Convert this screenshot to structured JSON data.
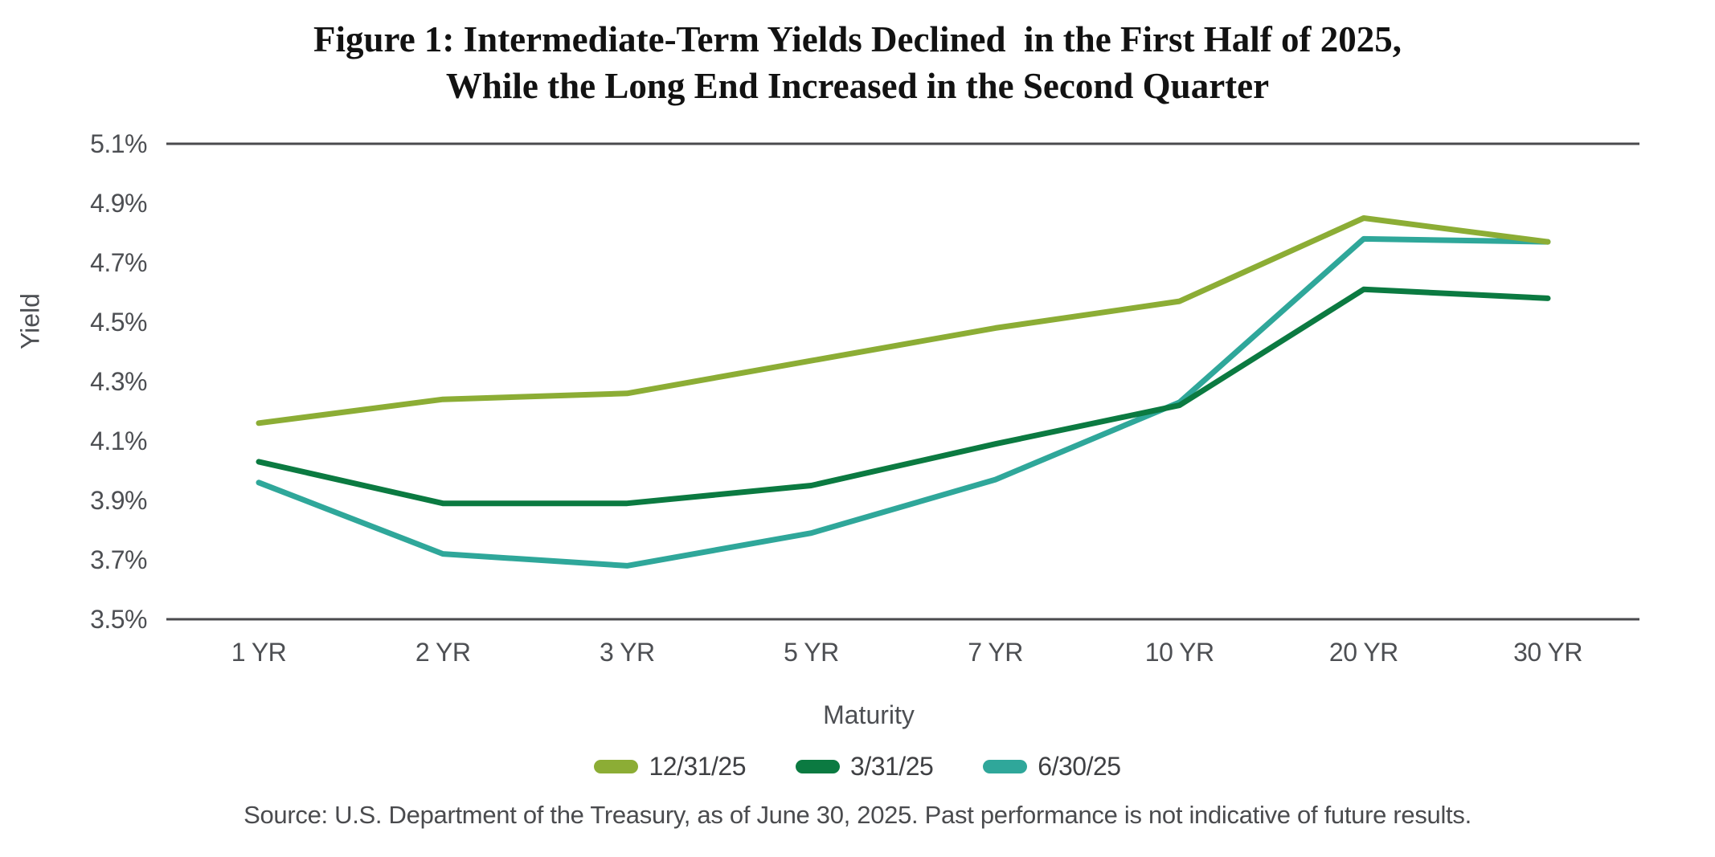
{
  "title": {
    "line1": "Figure 1: Intermediate-Term Yields Declined  in the First Half of 2025,",
    "line2": "While the Long End Increased in the Second Quarter"
  },
  "chart_data": {
    "type": "line",
    "categories": [
      "1 YR",
      "2 YR",
      "3 YR",
      "5 YR",
      "7 YR",
      "10 YR",
      "20 YR",
      "30 YR"
    ],
    "series": [
      {
        "name": "12/31/25",
        "color": "#8CAD35",
        "values": [
          4.16,
          4.24,
          4.26,
          4.37,
          4.48,
          4.57,
          4.85,
          4.77
        ]
      },
      {
        "name": "3/31/25",
        "color": "#0B7A41",
        "values": [
          4.03,
          3.89,
          3.89,
          3.95,
          4.09,
          4.22,
          4.61,
          4.58
        ]
      },
      {
        "name": "6/30/25",
        "color": "#2FA79A",
        "values": [
          3.96,
          3.72,
          3.68,
          3.79,
          3.97,
          4.23,
          4.78,
          4.77
        ]
      }
    ],
    "xlabel": "Maturity",
    "ylabel": "Yield",
    "ylim": [
      3.5,
      5.1
    ],
    "ytick_step": 0.2,
    "ytick_labels": [
      "5.1%",
      "4.9%",
      "4.7%",
      "4.5%",
      "4.3%",
      "4.1%",
      "3.9%",
      "3.7%",
      "3.5%"
    ],
    "grid": "horizontal boundary lines at top (5.1%) and bottom (3.5%) only",
    "legend_position": "bottom-center"
  },
  "source": "Source: U.S. Department of the Treasury, as of June 30, 2025. Past performance is not indicative of future results.",
  "colors": {
    "axis_line": "#4A4A4D",
    "tick_text": "#4D4F53",
    "title_text": "#121212",
    "background": "#FFFFFF"
  }
}
